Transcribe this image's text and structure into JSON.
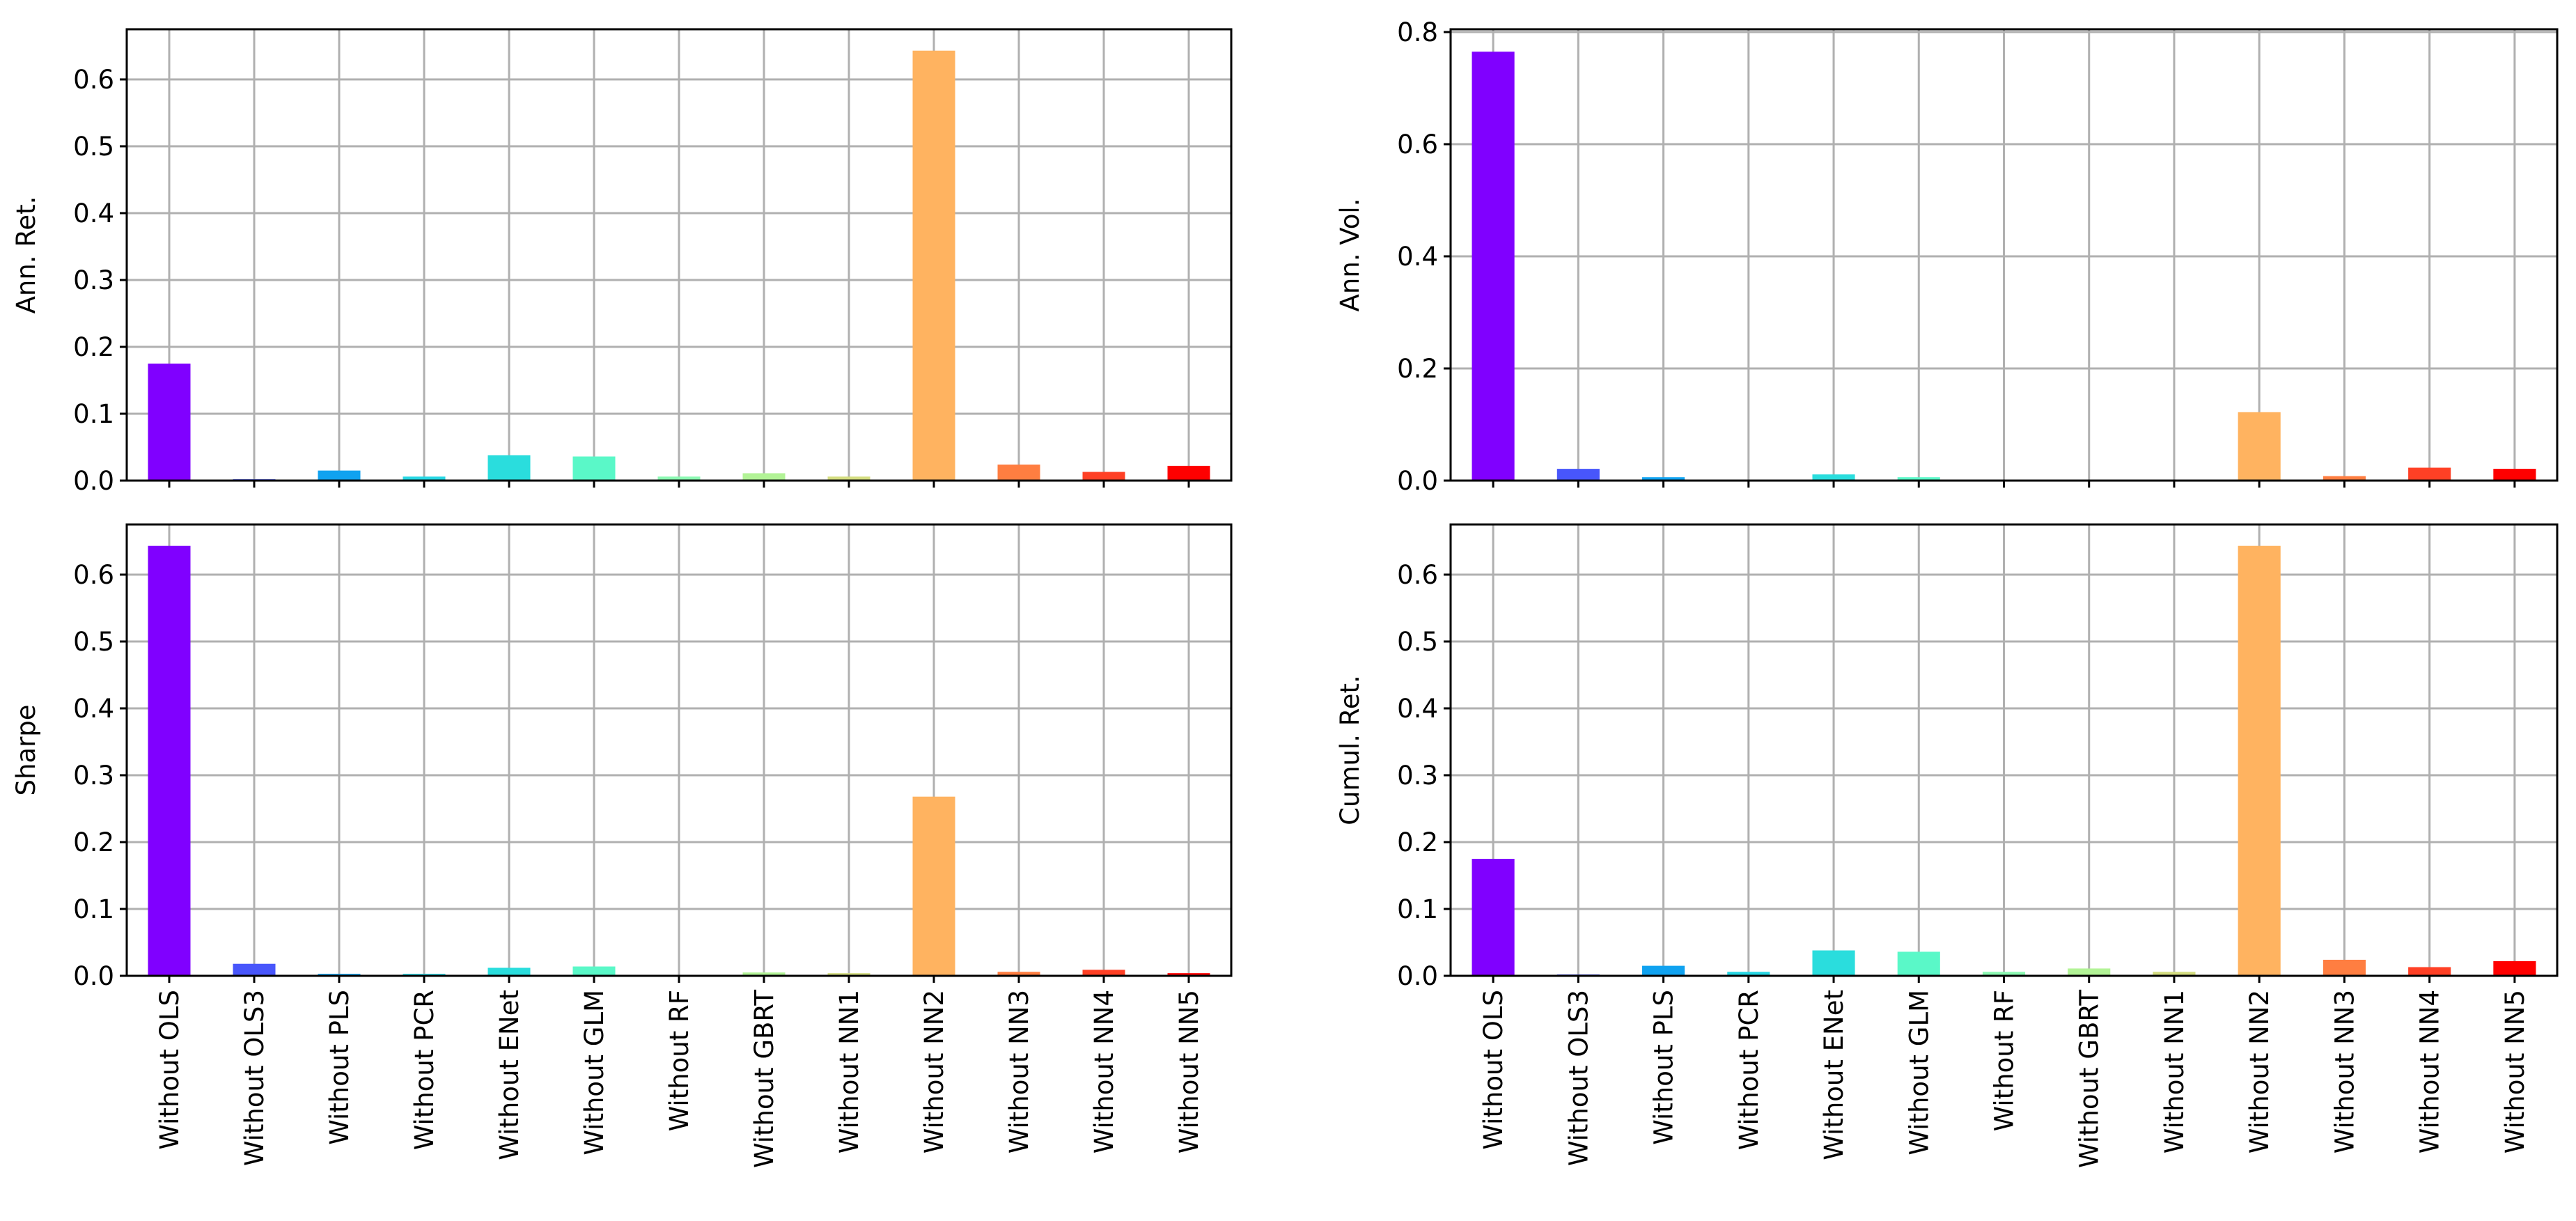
{
  "colors": {
    "bars": [
      "#8000ff",
      "#4856fb",
      "#10a2f0",
      "#26d6e3",
      "#2adddd",
      "#5af8c8",
      "#8bf9b2",
      "#b2f396",
      "#d4dd80",
      "#ffb360",
      "#ff7e41",
      "#ff4025",
      "#ff0000"
    ],
    "grid": "#b0b0b0",
    "axes": "#000000",
    "background": "#ffffff"
  },
  "chart_data": [
    {
      "type": "bar",
      "title": "",
      "xlabel": "",
      "ylabel": "Ann. Ret.",
      "categories": [
        "Without OLS",
        "Without OLS3",
        "Without PLS",
        "Without PCR",
        "Without ENet",
        "Without GLM",
        "Without RF",
        "Without GBRT",
        "Without NN1",
        "Without NN2",
        "Without NN3",
        "Without NN4",
        "Without NN5"
      ],
      "values": [
        0.175,
        0.002,
        0.015,
        0.006,
        0.038,
        0.036,
        0.006,
        0.011,
        0.006,
        0.643,
        0.024,
        0.013,
        0.022
      ],
      "ylim": [
        0,
        0.675
      ],
      "yticks": [
        0.0,
        0.1,
        0.2,
        0.3,
        0.4,
        0.5,
        0.6
      ],
      "ytick_labels": [
        "0.0",
        "0.1",
        "0.2",
        "0.3",
        "0.4",
        "0.5",
        "0.6"
      ],
      "grid": true,
      "show_xticklabels": false
    },
    {
      "type": "bar",
      "title": "",
      "xlabel": "",
      "ylabel": "Ann. Vol.",
      "categories": [
        "Without OLS",
        "Without OLS3",
        "Without PLS",
        "Without PCR",
        "Without ENet",
        "Without GLM",
        "Without RF",
        "Without GBRT",
        "Without NN1",
        "Without NN2",
        "Without NN3",
        "Without NN4",
        "Without NN5"
      ],
      "values": [
        0.765,
        0.021,
        0.006,
        0.001,
        0.011,
        0.006,
        0.001,
        0.001,
        0.001,
        0.122,
        0.008,
        0.023,
        0.021
      ],
      "ylim": [
        0,
        0.805
      ],
      "yticks": [
        0.0,
        0.2,
        0.4,
        0.6,
        0.8
      ],
      "ytick_labels": [
        "0.0",
        "0.2",
        "0.4",
        "0.6",
        "0.8"
      ],
      "grid": true,
      "show_xticklabels": false
    },
    {
      "type": "bar",
      "title": "",
      "xlabel": "",
      "ylabel": "Sharpe",
      "categories": [
        "Without OLS",
        "Without OLS3",
        "Without PLS",
        "Without PCR",
        "Without ENet",
        "Without GLM",
        "Without RF",
        "Without GBRT",
        "Without NN1",
        "Without NN2",
        "Without NN3",
        "Without NN4",
        "Without NN5"
      ],
      "values": [
        0.643,
        0.018,
        0.003,
        0.003,
        0.012,
        0.014,
        0.001,
        0.005,
        0.004,
        0.268,
        0.006,
        0.009,
        0.004
      ],
      "ylim": [
        0,
        0.675
      ],
      "yticks": [
        0.0,
        0.1,
        0.2,
        0.3,
        0.4,
        0.5,
        0.6
      ],
      "ytick_labels": [
        "0.0",
        "0.1",
        "0.2",
        "0.3",
        "0.4",
        "0.5",
        "0.6"
      ],
      "grid": true,
      "show_xticklabels": true
    },
    {
      "type": "bar",
      "title": "",
      "xlabel": "",
      "ylabel": "Cumul. Ret.",
      "categories": [
        "Without OLS",
        "Without OLS3",
        "Without PLS",
        "Without PCR",
        "Without ENet",
        "Without GLM",
        "Without RF",
        "Without GBRT",
        "Without NN1",
        "Without NN2",
        "Without NN3",
        "Without NN4",
        "Without NN5"
      ],
      "values": [
        0.175,
        0.002,
        0.015,
        0.006,
        0.038,
        0.036,
        0.006,
        0.011,
        0.006,
        0.643,
        0.024,
        0.013,
        0.022
      ],
      "ylim": [
        0,
        0.675
      ],
      "yticks": [
        0.0,
        0.1,
        0.2,
        0.3,
        0.4,
        0.5,
        0.6
      ],
      "ytick_labels": [
        "0.0",
        "0.1",
        "0.2",
        "0.3",
        "0.4",
        "0.5",
        "0.6"
      ],
      "grid": true,
      "show_xticklabels": true
    }
  ]
}
